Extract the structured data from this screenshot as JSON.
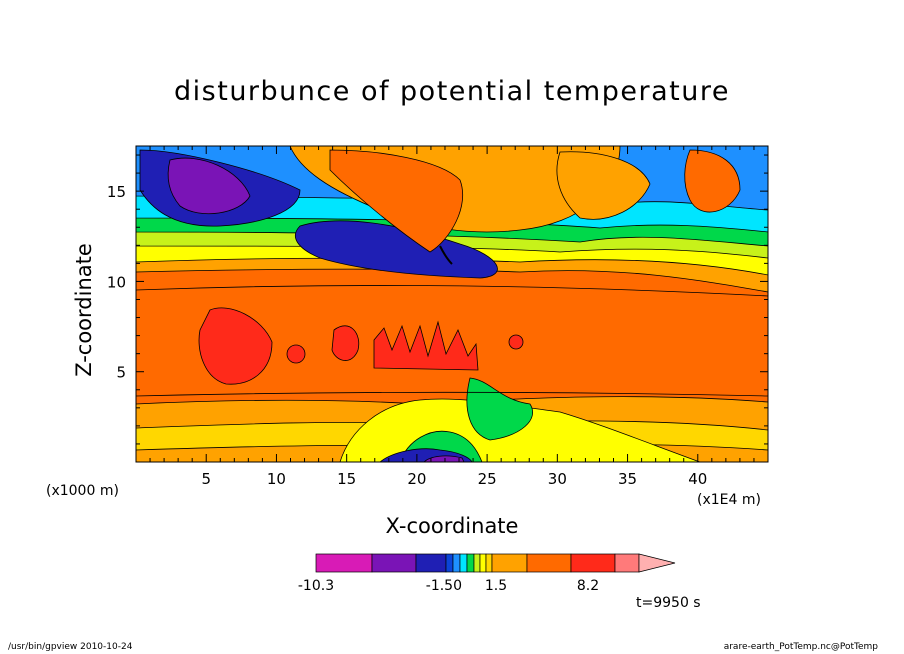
{
  "chart_data": {
    "type": "heatmap",
    "title": "disturbunce of potential temperature",
    "xlabel": "X-coordinate",
    "ylabel": "Z-coordinate",
    "x_unit_label": "(x1000 m)",
    "x_scale_label": "(x1E4 m)",
    "xlim": [
      0,
      45
    ],
    "ylim": [
      0,
      17.5
    ],
    "xticks": [
      "5",
      "10",
      "15",
      "20",
      "25",
      "30",
      "35",
      "40"
    ],
    "yticks": [
      "5",
      "10",
      "15"
    ],
    "colorbar": {
      "labels": [
        "-10.3",
        "-1.50",
        "1.5",
        "8.2"
      ],
      "colors": [
        "#d81bb6",
        "#7a14b6",
        "#1f1fb4",
        "#0a44d8",
        "#1e90ff",
        "#00e5ff",
        "#00d84a",
        "#c7f21a",
        "#ffff00",
        "#ffd700",
        "#ffa200",
        "#ff6a00",
        "#ff2a1a",
        "#ff7a7a",
        "#ffb0b0"
      ]
    },
    "time_label": "t=9950 s"
  },
  "footer": {
    "left": "/usr/bin/gpview   2010-10-24",
    "right": "arare-earth_PotTemp.nc@PotTemp"
  }
}
